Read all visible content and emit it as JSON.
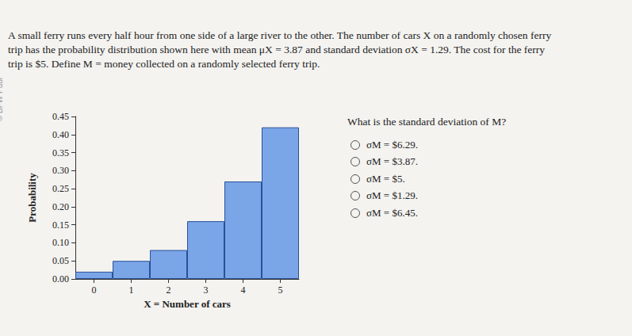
{
  "credit": "© BFW Publ",
  "paragraph": [
    "A small ferry runs every half hour from one side of a large river to the other. The number of cars X on a randomly chosen ferry",
    "trip has the probability distribution shown here with mean μX = 3.87 and standard deviation σX = 1.29. The cost for the ferry",
    "trip is $5. Define M = money collected on a randomly selected ferry trip."
  ],
  "question": "What is the standard deviation of M?",
  "options": [
    "σM = $6.29.",
    "σM = $3.87.",
    "σM = $5.",
    "σM = $1.29.",
    "σM = $6.45."
  ],
  "chart_data": {
    "type": "bar",
    "categories": [
      "0",
      "1",
      "2",
      "3",
      "4",
      "5"
    ],
    "values": [
      0.02,
      0.05,
      0.08,
      0.16,
      0.27,
      0.42
    ],
    "color": "#7aa6e8",
    "x_label": "X = Number of cars",
    "y_label": "Probability",
    "ylim": [
      0,
      0.45
    ],
    "yticks": [
      {
        "value": 0,
        "label": "0.00"
      },
      {
        "value": 0.05,
        "label": "0.05"
      },
      {
        "value": 0.1,
        "label": "0.10"
      },
      {
        "value": 0.15,
        "label": "0.15"
      },
      {
        "value": 0.2,
        "label": "0.20"
      },
      {
        "value": 0.25,
        "label": "0.25"
      },
      {
        "value": 0.3,
        "label": "0.30"
      },
      {
        "value": 0.35,
        "label": "0.35"
      },
      {
        "value": 0.4,
        "label": "0.40"
      },
      {
        "value": 0.45,
        "label": "0.45"
      }
    ],
    "grid": false
  }
}
